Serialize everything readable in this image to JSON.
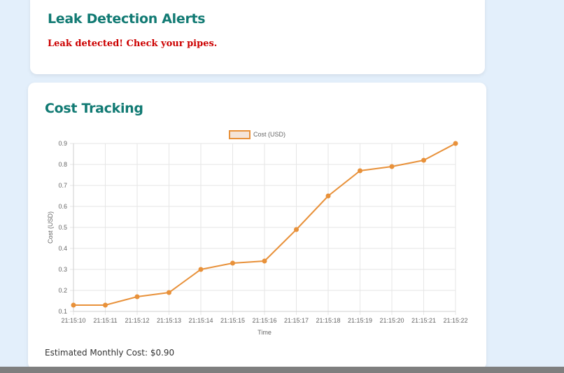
{
  "alerts": {
    "title": "Leak Detection Alerts",
    "message": "Leak detected! Check your pipes."
  },
  "cost": {
    "title": "Cost Tracking",
    "monthly_label": "Estimated Monthly Cost: $0.90"
  },
  "colors": {
    "line": "#e8913a",
    "legend_fill": "#f4e4d8",
    "grid": "#e6e6e6",
    "title": "#117a73",
    "alert": "#cc0000"
  },
  "chart_data": {
    "type": "line",
    "x": [
      "21:15:10",
      "21:15:11",
      "21:15:12",
      "21:15:13",
      "21:15:14",
      "21:15:15",
      "21:15:16",
      "21:15:17",
      "21:15:18",
      "21:15:19",
      "21:15:20",
      "21:15:21",
      "21:15:22"
    ],
    "series": [
      {
        "name": "Cost (USD)",
        "values": [
          0.13,
          0.13,
          0.17,
          0.19,
          0.3,
          0.33,
          0.34,
          0.49,
          0.65,
          0.77,
          0.79,
          0.82,
          0.9
        ]
      }
    ],
    "xlabel": "Time",
    "ylabel": "Cost (USD)",
    "ylim": [
      0.1,
      0.9
    ],
    "yticks": [
      "0.1",
      "0.2",
      "0.3",
      "0.4",
      "0.5",
      "0.6",
      "0.7",
      "0.8",
      "0.9"
    ],
    "grid": true,
    "legend": "top-center"
  }
}
